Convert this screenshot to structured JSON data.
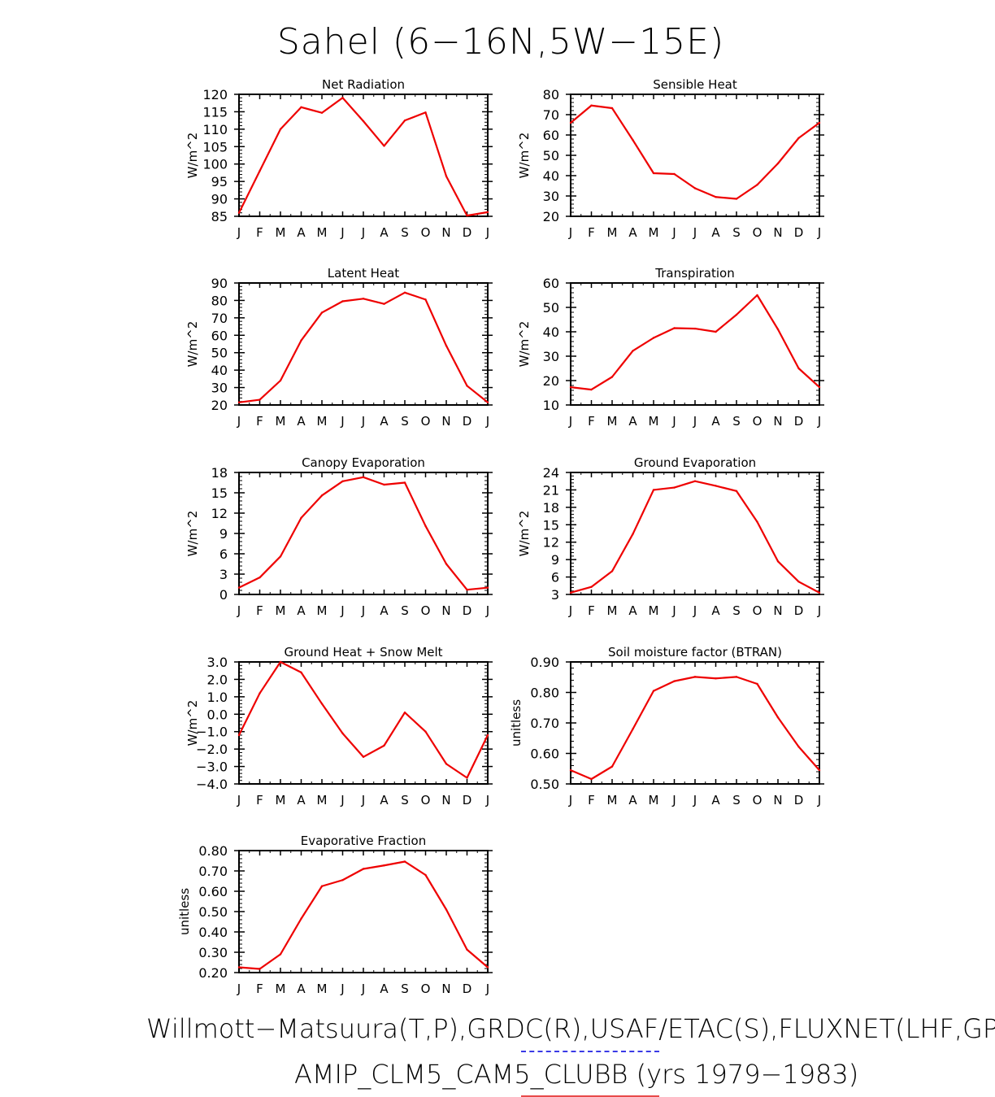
{
  "title": "Sahel (6−16N,5W−15E)",
  "footer": {
    "line1": "Willmott−Matsuura(T,P),GRDC(R),USAF/ETAC(S),FLUXNET(LHF,GPP)",
    "line2": "AMIP_CLM5_CAM5_CLUBB (yrs 1979−1983)"
  },
  "colors": {
    "model_line": "#ee0000",
    "obs_underline": "#3a3ae6",
    "model_underline": "#e84a4a"
  },
  "months": [
    "J",
    "F",
    "M",
    "A",
    "M",
    "J",
    "J",
    "A",
    "S",
    "O",
    "N",
    "D",
    "J"
  ],
  "chart_data": [
    {
      "type": "line",
      "title": "Net Radiation",
      "ylabel": "W/m^2",
      "ylim": [
        85,
        120
      ],
      "yticks": [
        "85",
        "90",
        "95",
        "100",
        "105",
        "110",
        "115",
        "120"
      ],
      "series": [
        {
          "values": [
            86,
            98,
            110,
            116.3,
            114.7,
            119,
            112.3,
            105.2,
            112.5,
            114.8,
            96.5,
            85.2,
            86.2
          ]
        }
      ]
    },
    {
      "type": "line",
      "title": "Sensible Heat",
      "ylabel": "W/m^2",
      "ylim": [
        20,
        80
      ],
      "yticks": [
        "20",
        "30",
        "40",
        "50",
        "60",
        "70",
        "80"
      ],
      "series": [
        {
          "values": [
            66,
            74.5,
            73.2,
            57.5,
            41.2,
            40.8,
            33.8,
            29.5,
            28.6,
            35.5,
            46,
            58.5,
            66
          ]
        }
      ]
    },
    {
      "type": "line",
      "title": "Latent Heat",
      "ylabel": "W/m^2",
      "ylim": [
        20,
        90
      ],
      "yticks": [
        "20",
        "30",
        "40",
        "50",
        "60",
        "70",
        "80",
        "90"
      ],
      "series": [
        {
          "values": [
            21.5,
            23,
            34,
            57,
            73,
            79.5,
            81,
            78,
            84.5,
            80.5,
            54,
            31,
            21.5
          ]
        }
      ]
    },
    {
      "type": "line",
      "title": "Transpiration",
      "ylabel": "W/m^2",
      "ylim": [
        10,
        60
      ],
      "yticks": [
        "10",
        "20",
        "30",
        "40",
        "50",
        "60"
      ],
      "series": [
        {
          "values": [
            17.3,
            16.3,
            21.5,
            32.2,
            37.5,
            41.5,
            41.3,
            40,
            47,
            55,
            41,
            25,
            17.3
          ]
        }
      ]
    },
    {
      "type": "line",
      "title": "Canopy Evaporation",
      "ylabel": "W/m^2",
      "ylim": [
        0,
        18
      ],
      "yticks": [
        "0",
        "3",
        "6",
        "9",
        "12",
        "15",
        "18"
      ],
      "series": [
        {
          "values": [
            1,
            2.5,
            5.6,
            11.3,
            14.6,
            16.7,
            17.3,
            16.2,
            16.5,
            10.1,
            4.5,
            0.7,
            1
          ]
        }
      ]
    },
    {
      "type": "line",
      "title": "Ground Evaporation",
      "ylabel": "W/m^2",
      "ylim": [
        3,
        24
      ],
      "yticks": [
        "3",
        "6",
        "9",
        "12",
        "15",
        "18",
        "21",
        "24"
      ],
      "series": [
        {
          "values": [
            3.3,
            4.3,
            7,
            13.4,
            21,
            21.4,
            22.5,
            21.7,
            20.8,
            15.5,
            8.7,
            5.2,
            3.3
          ]
        }
      ]
    },
    {
      "type": "line",
      "title": "Ground Heat + Snow Melt",
      "ylabel": "W/m^2",
      "ylim": [
        -4,
        3
      ],
      "yticks": [
        "−4.0",
        "−3.0",
        "−2.0",
        "−1.0",
        "0.0",
        "1.0",
        "2.0",
        "3.0"
      ],
      "series": [
        {
          "values": [
            -1.2,
            1.2,
            3,
            2.4,
            0.6,
            -1.1,
            -2.45,
            -1.8,
            0.1,
            -1,
            -2.85,
            -3.65,
            -1.2
          ]
        }
      ]
    },
    {
      "type": "line",
      "title": "Soil moisture factor (BTRAN)",
      "ylabel": "unitless",
      "ylim": [
        0.5,
        0.9
      ],
      "yticks": [
        "0.50",
        "0.60",
        "0.70",
        "0.80",
        "0.90"
      ],
      "series": [
        {
          "values": [
            0.545,
            0.516,
            0.557,
            0.68,
            0.805,
            0.837,
            0.851,
            0.846,
            0.851,
            0.828,
            0.718,
            0.622,
            0.545
          ]
        }
      ]
    },
    {
      "type": "line",
      "title": "Evaporative Fraction",
      "ylabel": "unitless",
      "ylim": [
        0.2,
        0.8
      ],
      "yticks": [
        "0.20",
        "0.30",
        "0.40",
        "0.50",
        "0.60",
        "0.70",
        "0.80"
      ],
      "series": [
        {
          "values": [
            0.226,
            0.218,
            0.29,
            0.465,
            0.625,
            0.655,
            0.71,
            0.727,
            0.746,
            0.68,
            0.51,
            0.313,
            0.226
          ]
        }
      ]
    }
  ]
}
